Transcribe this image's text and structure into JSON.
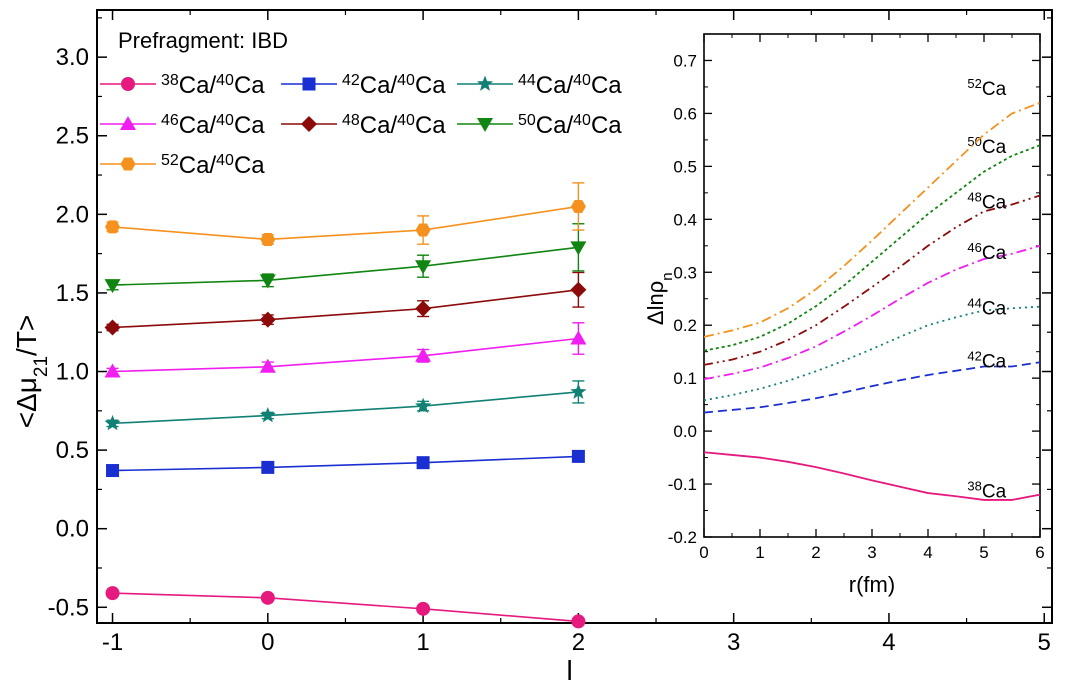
{
  "chart_data": [
    {
      "type": "line",
      "ylabel_parts": [
        "<Δμ",
        "21",
        "/T>"
      ],
      "xlabel": "l",
      "x": [
        -1,
        0,
        1,
        2
      ],
      "xlim": [
        -1.1,
        5.05
      ],
      "ylim": [
        -0.6,
        3.3
      ],
      "x_ticks": [
        -1,
        0,
        1,
        2,
        3,
        4,
        5
      ],
      "x_tick_labels": [
        "-1",
        "0",
        "1",
        "2",
        "3",
        "4",
        "5"
      ],
      "y_ticks": [
        -0.5,
        0.0,
        0.5,
        1.0,
        1.5,
        2.0,
        2.5,
        3.0
      ],
      "y_tick_labels": [
        "-0.5",
        "0.0",
        "0.5",
        "1.0",
        "1.5",
        "2.0",
        "2.5",
        "3.0"
      ],
      "legend_title": "Prefragment: IBD",
      "legend_position": "top-left",
      "grid": false,
      "series": [
        {
          "name": "38Ca/40Ca",
          "mass": "38",
          "marker": "circle",
          "color": "#e6197f",
          "values": [
            -0.41,
            -0.44,
            -0.51,
            -0.59
          ],
          "errors": [
            0.01,
            0.01,
            0.01,
            0.02
          ]
        },
        {
          "name": "42Ca/40Ca",
          "mass": "42",
          "marker": "square",
          "color": "#1a2fd1",
          "values": [
            0.37,
            0.39,
            0.42,
            0.46
          ],
          "errors": [
            0.01,
            0.01,
            0.01,
            0.02
          ]
        },
        {
          "name": "44Ca/40Ca",
          "mass": "44",
          "marker": "star",
          "color": "#118075",
          "values": [
            0.67,
            0.72,
            0.78,
            0.87
          ],
          "errors": [
            0.02,
            0.02,
            0.03,
            0.07
          ]
        },
        {
          "name": "46Ca/40Ca",
          "mass": "46",
          "marker": "triangle-up",
          "color": "#f01ef0",
          "values": [
            1.0,
            1.03,
            1.1,
            1.21
          ],
          "errors": [
            0.02,
            0.03,
            0.04,
            0.1
          ]
        },
        {
          "name": "48Ca/40Ca",
          "mass": "48",
          "marker": "diamond",
          "color": "#8c0a0a",
          "values": [
            1.28,
            1.33,
            1.4,
            1.52
          ],
          "errors": [
            0.02,
            0.03,
            0.05,
            0.11
          ]
        },
        {
          "name": "50Ca/40Ca",
          "mass": "50",
          "marker": "triangle-down",
          "color": "#118511",
          "values": [
            1.55,
            1.58,
            1.67,
            1.79
          ],
          "errors": [
            0.03,
            0.04,
            0.07,
            0.15
          ]
        },
        {
          "name": "52Ca/40Ca",
          "mass": "52",
          "marker": "hexagon",
          "color": "#f5911e",
          "values": [
            1.92,
            1.84,
            1.9,
            2.05
          ],
          "errors": [
            0.03,
            0.03,
            0.09,
            0.15
          ]
        }
      ]
    },
    {
      "type": "line",
      "xlabel": "r(fm)",
      "ylabel_parts": [
        "Δlnρ",
        "n"
      ],
      "xlim": [
        0,
        6
      ],
      "ylim": [
        -0.2,
        0.75
      ],
      "x_ticks": [
        0,
        1,
        2,
        3,
        4,
        5,
        6
      ],
      "x_tick_labels": [
        "0",
        "1",
        "2",
        "3",
        "4",
        "5",
        "6"
      ],
      "y_ticks": [
        -0.2,
        -0.1,
        0.0,
        0.1,
        0.2,
        0.3,
        0.4,
        0.5,
        0.6,
        0.7
      ],
      "y_tick_labels": [
        "-0.2",
        "-0.1",
        "0.0",
        "0.1",
        "0.2",
        "0.3",
        "0.4",
        "0.5",
        "0.6",
        "0.7"
      ],
      "x": [
        0,
        0.5,
        1,
        1.5,
        2,
        2.5,
        3,
        3.5,
        4,
        4.5,
        5,
        5.5,
        6
      ],
      "series": [
        {
          "name": "38Ca",
          "mass": "38",
          "style": "solid",
          "color": "#e6197f",
          "values": [
            -0.04,
            -0.045,
            -0.05,
            -0.058,
            -0.068,
            -0.08,
            -0.093,
            -0.105,
            -0.117,
            -0.123,
            -0.13,
            -0.13,
            -0.12
          ]
        },
        {
          "name": "42Ca",
          "mass": "42",
          "style": "dash",
          "color": "#1a2fd1",
          "values": [
            0.035,
            0.04,
            0.045,
            0.053,
            0.062,
            0.073,
            0.085,
            0.096,
            0.106,
            0.114,
            0.122,
            0.122,
            0.13
          ]
        },
        {
          "name": "44Ca",
          "mass": "44",
          "style": "dot",
          "color": "#118075",
          "values": [
            0.058,
            0.068,
            0.08,
            0.095,
            0.113,
            0.133,
            0.155,
            0.178,
            0.2,
            0.215,
            0.228,
            0.232,
            0.235
          ]
        },
        {
          "name": "46Ca",
          "mass": "46",
          "style": "dashdot",
          "color": "#f01ef0",
          "values": [
            0.098,
            0.108,
            0.12,
            0.138,
            0.16,
            0.188,
            0.218,
            0.25,
            0.28,
            0.305,
            0.325,
            0.335,
            0.35
          ]
        },
        {
          "name": "48Ca",
          "mass": "48",
          "style": "dashdotdot",
          "color": "#8c0a0a",
          "values": [
            0.125,
            0.135,
            0.15,
            0.172,
            0.2,
            0.235,
            0.272,
            0.31,
            0.35,
            0.385,
            0.415,
            0.428,
            0.445
          ]
        },
        {
          "name": "50Ca",
          "mass": "50",
          "style": "shortdot",
          "color": "#118511",
          "values": [
            0.152,
            0.162,
            0.178,
            0.203,
            0.236,
            0.275,
            0.32,
            0.365,
            0.41,
            0.45,
            0.49,
            0.52,
            0.54
          ]
        },
        {
          "name": "52Ca",
          "mass": "52",
          "style": "dashdot",
          "color": "#f5911e",
          "values": [
            0.178,
            0.19,
            0.205,
            0.232,
            0.268,
            0.312,
            0.36,
            0.41,
            0.46,
            0.51,
            0.56,
            0.6,
            0.62
          ]
        }
      ]
    }
  ]
}
